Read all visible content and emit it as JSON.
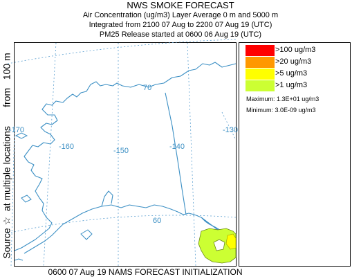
{
  "header": {
    "title": "NWS SMOKE FORECAST",
    "line2": "Air Concentration (ug/m3) Layer Average    0 m and  5000 m",
    "line3": "Integrated from 2100 07 Aug to 2200 07 Aug 19 (UTC)",
    "line4": "PM25 Release started at 0600 06 Aug 19 (UTC)"
  },
  "side_label": "Source ☆  at multiple locations       from   100 m",
  "map": {
    "graticule_labels": [
      "70",
      "-170",
      "-160",
      "-150",
      "-140",
      "-130",
      "60"
    ]
  },
  "legend": {
    "items": [
      {
        "label": ">100 ug/m3",
        "color": "#ff0000"
      },
      {
        "label": ">20 ug/m3",
        "color": "#ff9900"
      },
      {
        "label": ">5 ug/m3",
        "color": "#ffff00"
      },
      {
        "label": ">1 ug/m3",
        "color": "#ccff33"
      }
    ],
    "maximum": "Maximum:  1.3E+01 ug/m3",
    "minimum": "Minimum:  3.0E-09 ug/m3"
  },
  "footer": "0600 07 Aug 19 NAMS FORECAST INITIALIZATION",
  "colors": {
    "coastline": "#3b8fc4",
    "graticule": "#5b9fd0",
    "border": "#3b8fc4"
  }
}
